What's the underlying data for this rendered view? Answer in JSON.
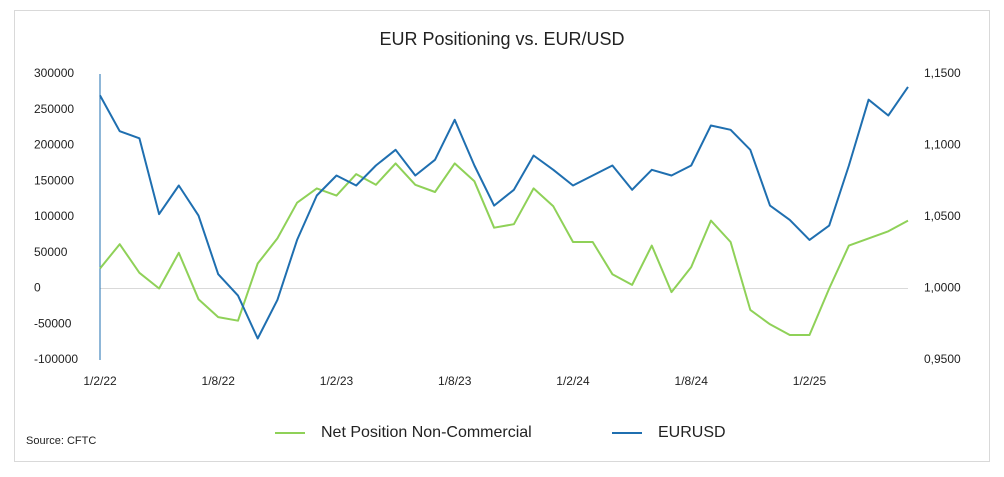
{
  "chart_data": {
    "type": "line",
    "title": "EUR Positioning vs. EUR/USD",
    "source": "Source: CFTC",
    "categories": [
      "1/2/22",
      null,
      null,
      null,
      null,
      null,
      "1/8/22",
      null,
      null,
      null,
      null,
      null,
      "1/2/23",
      null,
      null,
      null,
      null,
      null,
      "1/8/23",
      null,
      null,
      null,
      null,
      null,
      "1/2/24",
      null,
      null,
      null,
      null,
      null,
      "1/8/24",
      null,
      null,
      null,
      null,
      null,
      "1/2/25",
      null,
      null,
      null,
      null,
      null
    ],
    "series": [
      {
        "name": "Net Position Non-Commercial",
        "color": "#8fd158",
        "values": [
          28000,
          62000,
          22000,
          0,
          50000,
          -15000,
          -40000,
          -45000,
          35000,
          70000,
          120000,
          140000,
          130000,
          160000,
          145000,
          175000,
          145000,
          135000,
          175000,
          150000,
          85000,
          90000,
          140000,
          115000,
          65000,
          65000,
          20000,
          5000,
          60000,
          -5000,
          30000,
          95000,
          65000,
          -30000,
          -50000,
          -65000,
          -65000,
          0,
          60000,
          70000,
          80000,
          95000
        ]
      },
      {
        "name": "EURUSD",
        "color": "#1f6fb0",
        "axis": "y2",
        "values": [
          1.135,
          1.11,
          1.105,
          1.052,
          1.072,
          1.051,
          1.01,
          0.995,
          0.965,
          0.992,
          1.034,
          1.065,
          1.079,
          1.072,
          1.086,
          1.097,
          1.079,
          1.09,
          1.118,
          1.086,
          1.058,
          1.069,
          1.093,
          1.083,
          1.072,
          1.079,
          1.086,
          1.069,
          1.083,
          1.079,
          1.086,
          1.114,
          1.111,
          1.097,
          1.058,
          1.048,
          1.034,
          1.044,
          1.086,
          1.132,
          1.121,
          1.141
        ]
      }
    ],
    "ylim": [
      -100000,
      300000
    ],
    "yticks": [
      -100000,
      -50000,
      0,
      50000,
      100000,
      150000,
      200000,
      250000,
      300000
    ],
    "y2lim": [
      0.95,
      1.15
    ],
    "y2ticks": [
      {
        "value": 0.95,
        "label": "0,9500"
      },
      {
        "value": 1.0,
        "label": "1,0000"
      },
      {
        "value": 1.05,
        "label": "1,0500"
      },
      {
        "value": 1.1,
        "label": "1,1000"
      },
      {
        "value": 1.15,
        "label": "1,1500"
      }
    ],
    "grid": false,
    "legend": "bottom"
  }
}
